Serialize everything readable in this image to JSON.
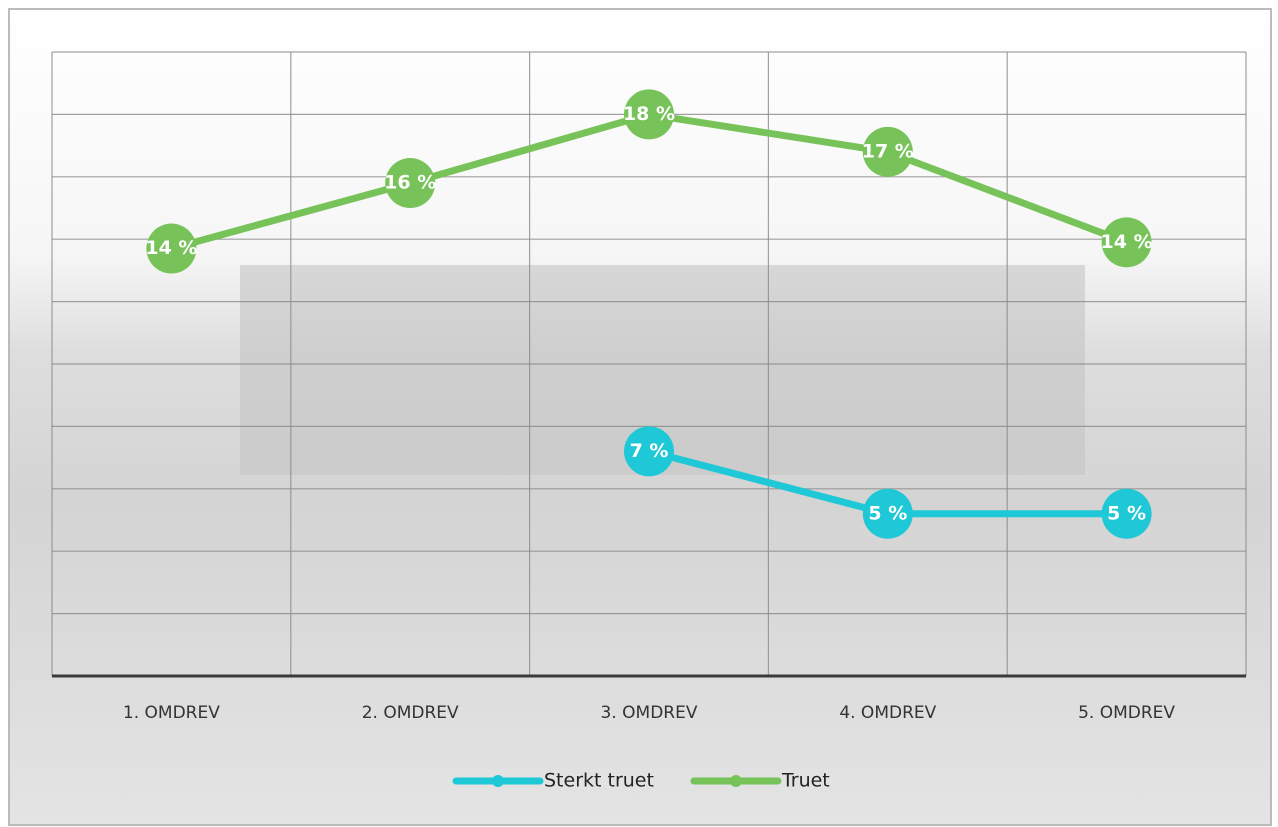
{
  "chart_data": {
    "type": "line",
    "categories": [
      "1. OMDREV",
      "2. OMDREV",
      "3. OMDREV",
      "4. OMDREV",
      "5. OMDREV"
    ],
    "series": [
      {
        "name": "Sterkt truet",
        "color": "#1ec8d6",
        "values": [
          null,
          null,
          7.2,
          5.2,
          5.2
        ],
        "value_labels": [
          null,
          null,
          "7 %",
          "5 %",
          "5 %"
        ]
      },
      {
        "name": "Truet",
        "color": "#77c35a",
        "values": [
          13.7,
          15.8,
          18.0,
          16.8,
          13.9
        ],
        "value_labels": [
          "14 %",
          "16 %",
          "18 %",
          "17 %",
          "14 %"
        ]
      }
    ],
    "ylim": [
      0,
      20
    ],
    "yticks": [
      0,
      2,
      4,
      6,
      8,
      10,
      12,
      14,
      16,
      18,
      20
    ],
    "grid": true,
    "legend": "bottom"
  }
}
